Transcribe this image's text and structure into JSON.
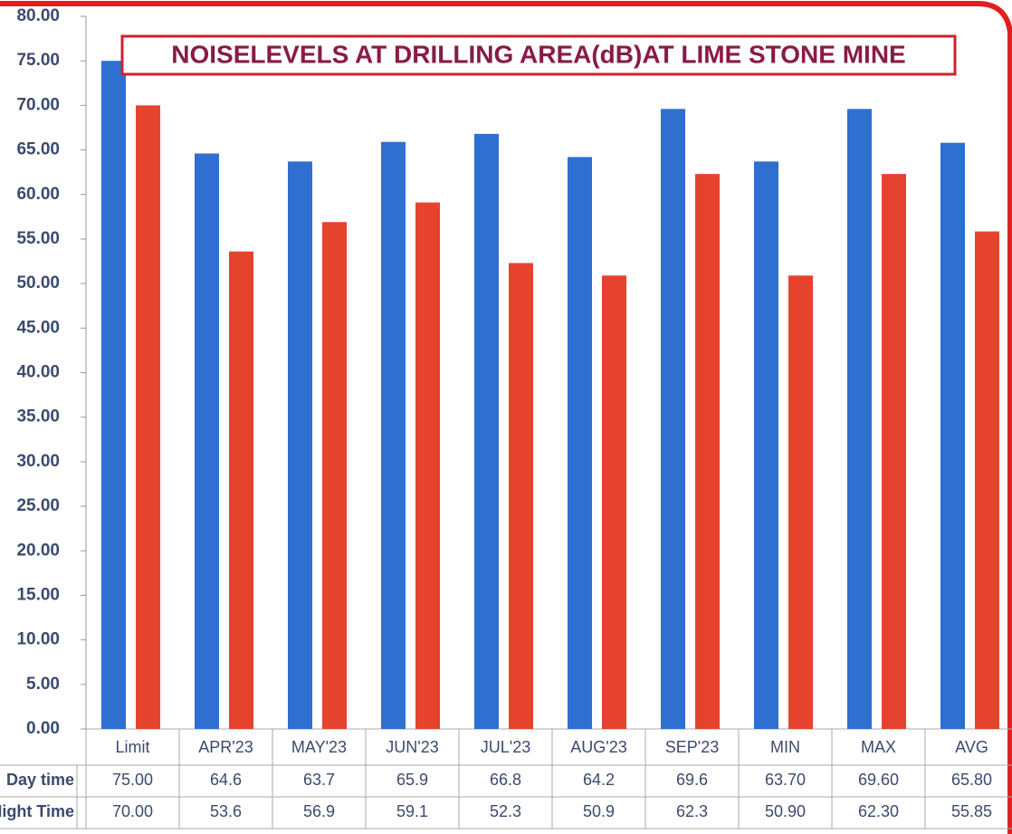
{
  "chart_data": {
    "type": "bar",
    "title": "NOISELEVELS AT DRILLING AREA(dB)AT LIME STONE MINE",
    "categories": [
      "Limit",
      "APR'23",
      "MAY'23",
      "JUN'23",
      "JUL'23",
      "AUG'23",
      "SEP'23",
      "MIN",
      "MAX",
      "AVG"
    ],
    "series": [
      {
        "name": "Day time",
        "color": "#2f6fcf",
        "values": [
          75,
          64.6,
          63.7,
          65.9,
          66.8,
          64.2,
          69.6,
          63.7,
          69.6,
          65.8
        ],
        "value_labels": [
          "75.00",
          "64.6",
          "63.7",
          "65.9",
          "66.8",
          "64.2",
          "69.6",
          "63.70",
          "69.60",
          "65.80"
        ]
      },
      {
        "name": "Night Time",
        "color": "#e5432d",
        "values": [
          70,
          53.6,
          56.9,
          59.1,
          52.3,
          50.9,
          62.3,
          50.9,
          62.3,
          55.85
        ],
        "value_labels": [
          "70.00",
          "53.6",
          "56.9",
          "59.1",
          "52.3",
          "50.9",
          "62.3",
          "50.90",
          "62.30",
          "55.85"
        ]
      }
    ],
    "ylim": [
      0,
      80
    ],
    "yticks": [
      {
        "value": 0,
        "label": "0.00"
      },
      {
        "value": 5,
        "label": "5.00"
      },
      {
        "value": 10,
        "label": "10.00"
      },
      {
        "value": 15,
        "label": "15.00"
      },
      {
        "value": 20,
        "label": "20.00"
      },
      {
        "value": 25,
        "label": "25.00"
      },
      {
        "value": 30,
        "label": "30.00"
      },
      {
        "value": 35,
        "label": "35.00"
      },
      {
        "value": 40,
        "label": "40.00"
      },
      {
        "value": 45,
        "label": "45.00"
      },
      {
        "value": 50,
        "label": "50.00"
      },
      {
        "value": 55,
        "label": "55.00"
      },
      {
        "value": 60,
        "label": "60.00"
      },
      {
        "value": 65,
        "label": "65.00"
      },
      {
        "value": 70,
        "label": "70.00"
      },
      {
        "value": 75,
        "label": "75.00"
      },
      {
        "value": 80,
        "label": "80.00"
      }
    ],
    "grid": false
  }
}
